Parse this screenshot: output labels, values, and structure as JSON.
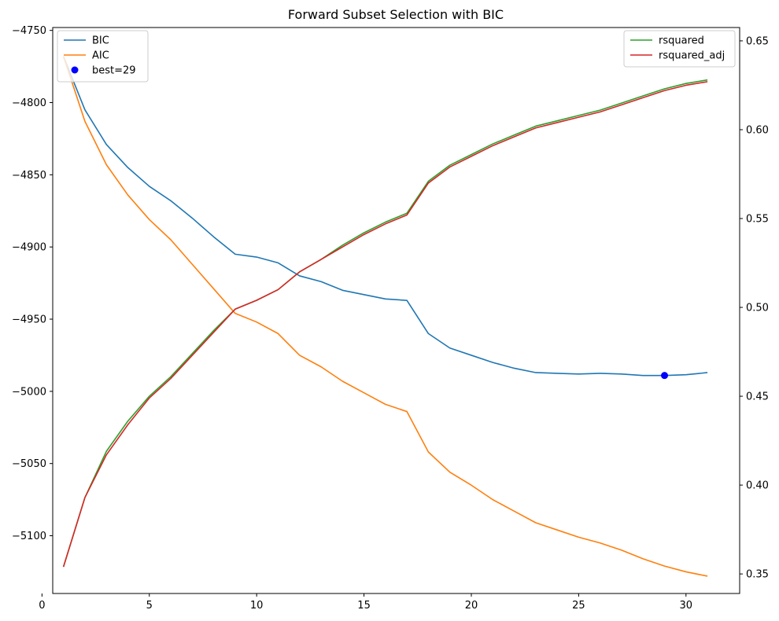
{
  "chart_data": {
    "type": "line",
    "title": "Forward Subset Selection with BIC",
    "x": [
      1,
      2,
      3,
      4,
      5,
      6,
      7,
      8,
      9,
      10,
      11,
      12,
      13,
      14,
      15,
      16,
      17,
      18,
      19,
      20,
      21,
      22,
      23,
      24,
      25,
      26,
      27,
      28,
      29,
      30,
      31
    ],
    "xlim": [
      0.5,
      32.5
    ],
    "xticks": [
      0,
      5,
      10,
      15,
      20,
      25,
      30
    ],
    "left_axis": {
      "ylim": [
        -5140,
        -4748
      ],
      "yticks": [
        -5100,
        -5050,
        -5000,
        -4950,
        -4900,
        -4850,
        -4800,
        -4750
      ]
    },
    "right_axis": {
      "ylim": [
        0.339,
        0.6575
      ],
      "yticks": [
        0.35,
        0.4,
        0.45,
        0.5,
        0.55,
        0.6,
        0.65
      ]
    },
    "series": [
      {
        "name": "BIC",
        "axis": "left",
        "color": "#1f77b4",
        "values": [
          -4768,
          -4805,
          -4829,
          -4845,
          -4858,
          -4868,
          -4880,
          -4893,
          -4905,
          -4907,
          -4911,
          -4920,
          -4924,
          -4930,
          -4933,
          -4936,
          -4937,
          -4960,
          -4970,
          -4975,
          -4980,
          -4984,
          -4987,
          -4987.5,
          -4988,
          -4987.5,
          -4988,
          -4989,
          -4989,
          -4988.5,
          -4987
        ]
      },
      {
        "name": "AIC",
        "axis": "left",
        "color": "#ff7f0e",
        "values": [
          -4768,
          -4813,
          -4843,
          -4864,
          -4881,
          -4895,
          -4912,
          -4929,
          -4946,
          -4952,
          -4960,
          -4975,
          -4983,
          -4993,
          -5001,
          -5009,
          -5014,
          -5042,
          -5056,
          -5065,
          -5075,
          -5083,
          -5091,
          -5096,
          -5101,
          -5105,
          -5110,
          -5116,
          -5121,
          -5125,
          -5128
        ]
      },
      {
        "name": "rsquared",
        "axis": "right",
        "color": "#2ca02c",
        "values": [
          0.354,
          0.393,
          0.419,
          0.436,
          0.45,
          0.461,
          0.474,
          0.487,
          0.499,
          0.504,
          0.51,
          0.52,
          0.527,
          0.535,
          0.542,
          0.548,
          0.553,
          0.571,
          0.58,
          0.586,
          0.592,
          0.597,
          0.602,
          0.605,
          0.608,
          0.611,
          0.615,
          0.619,
          0.623,
          0.626,
          0.628
        ]
      },
      {
        "name": "rsquared_adj",
        "axis": "right",
        "color": "#d62728",
        "values": [
          0.354,
          0.393,
          0.417,
          0.434,
          0.449,
          0.46,
          0.473,
          0.486,
          0.499,
          0.504,
          0.51,
          0.52,
          0.527,
          0.534,
          0.541,
          0.547,
          0.552,
          0.57,
          0.579,
          0.585,
          0.591,
          0.596,
          0.601,
          0.604,
          0.607,
          0.61,
          0.614,
          0.618,
          0.622,
          0.625,
          0.627
        ]
      }
    ],
    "best": {
      "label": "best=29",
      "x": 29,
      "y": -4989,
      "color": "#0000ff"
    },
    "legends": [
      {
        "position": "upper-left",
        "entries": [
          "BIC",
          "AIC",
          "best=29"
        ]
      },
      {
        "position": "upper-right",
        "entries": [
          "rsquared",
          "rsquared_adj"
        ]
      }
    ],
    "grid": false
  }
}
